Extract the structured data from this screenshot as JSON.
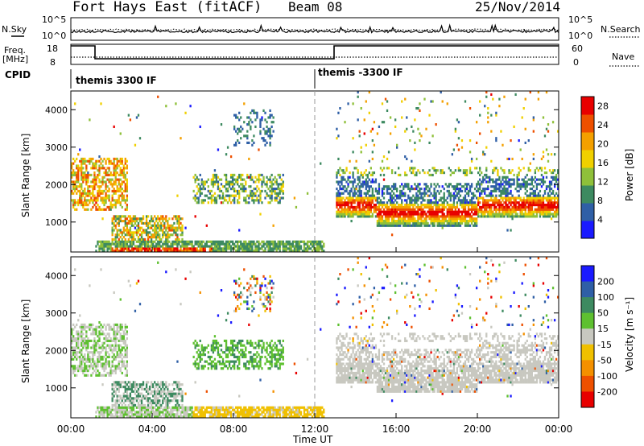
{
  "header": {
    "station": "Fort Hays East (fitACF)",
    "beam": "Beam 08",
    "date": "25/Nov/2014"
  },
  "status_panels": {
    "nsky_label": "N.Sky",
    "nsky_ticks": [
      "10^5",
      "10^0"
    ],
    "nsearch_label": "N.Search",
    "nsearch_ticks": [
      "10^5",
      "10^0"
    ],
    "freq_label": "Freq.",
    "freq_unit": "[MHz]",
    "freq_ticks": [
      "18",
      "8"
    ],
    "nave_label": "Nave",
    "nave_ticks": [
      "60",
      "0"
    ],
    "cpid_label": "CPID",
    "cpid_segments": [
      "themis 3300 IF",
      "themis -3300 IF"
    ],
    "cpid_change_hour": 12
  },
  "chart_data": [
    {
      "type": "heatmap",
      "name": "power",
      "ylabel": "Slant Range [km]",
      "yticks": [
        "1000",
        "2000",
        "3000",
        "4000"
      ],
      "ylim": [
        200,
        4500
      ],
      "xlim": [
        0,
        24
      ],
      "colorbar_label": "Power [dB]",
      "colorbar_ticks": [
        "4",
        "8",
        "12",
        "16",
        "20",
        "24",
        "28"
      ],
      "colorbar_range": [
        0,
        30
      ],
      "colors": [
        "#1a1aff",
        "#2f5fa6",
        "#3d8a60",
        "#8fc03a",
        "#f0d000",
        "#f4a000",
        "#ee5000",
        "#e80000"
      ]
    },
    {
      "type": "heatmap",
      "name": "velocity",
      "ylabel": "Slant Range [km]",
      "yticks": [
        "1000",
        "2000",
        "3000",
        "4000"
      ],
      "ylim": [
        200,
        4500
      ],
      "xlim": [
        0,
        24
      ],
      "xticks": [
        "00:00",
        "04:00",
        "08:00",
        "12:00",
        "16:00",
        "20:00",
        "00:00"
      ],
      "xlabel": "Time UT",
      "colorbar_label": "Velocity [m s⁻¹]",
      "colorbar_ticks": [
        "200",
        "100",
        "50",
        "15",
        "-15",
        "-50",
        "-100",
        "-200"
      ],
      "ground_scatter_color": "#c8c8c0",
      "colors": [
        "#1a1aff",
        "#2f5fa6",
        "#3d8a60",
        "#5ec030",
        "#c8c8c0",
        "#f0c000",
        "#f49000",
        "#ee5000",
        "#e80000"
      ]
    }
  ]
}
